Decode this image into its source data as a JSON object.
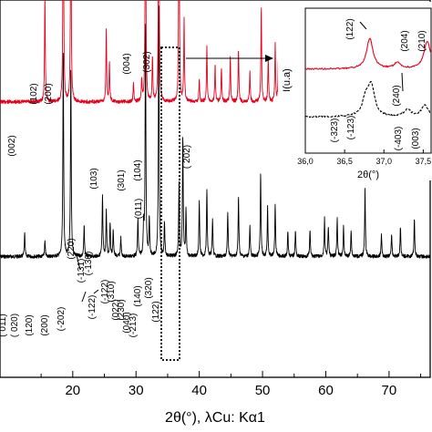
{
  "chart_data": [
    {
      "type": "line",
      "role": "main",
      "xlabel": "2θ(°), λCu: Kα1",
      "ylabel": "",
      "xlim": [
        8.5,
        76.5
      ],
      "x_ticks": [
        20,
        30,
        40,
        50,
        60,
        70
      ],
      "x_tick_labels": [
        "20",
        "30",
        "40",
        "50",
        "60",
        "70"
      ],
      "x_minor_ticks": [
        15,
        25,
        35,
        45,
        55,
        65,
        75
      ],
      "grid": false,
      "series": [
        {
          "color": "#e8001c",
          "baseline": 0.73,
          "peaks": [
            [
              15.6,
              28
            ],
            [
              18.5,
              66
            ],
            [
              19.7,
              58
            ],
            [
              25.3,
              19
            ],
            [
              25.8,
              10
            ],
            [
              29.6,
              5
            ],
            [
              30.9,
              6
            ],
            [
              31.5,
              66
            ],
            [
              32.6,
              12
            ],
            [
              33.6,
              72
            ],
            [
              36.8,
              58
            ],
            [
              37.6,
              22
            ],
            [
              40.0,
              6
            ],
            [
              41.2,
              15
            ],
            [
              42.5,
              10
            ],
            [
              43.5,
              9
            ],
            [
              44.9,
              12
            ],
            [
              46.2,
              14
            ],
            [
              48.0,
              8
            ],
            [
              49.8,
              25
            ],
            [
              50.9,
              12
            ],
            [
              52.0,
              15
            ],
            [
              52.5,
              11
            ],
            [
              55.2,
              6
            ],
            [
              58.3,
              6
            ],
            [
              60.2,
              8
            ],
            [
              61.6,
              6
            ],
            [
              62.4,
              17
            ],
            [
              62.9,
              14
            ],
            [
              64.0,
              10
            ],
            [
              66.2,
              12
            ],
            [
              69.0,
              6
            ],
            [
              70.5,
              6
            ],
            [
              71.6,
              5
            ],
            [
              72.4,
              5
            ],
            [
              74.1,
              6
            ]
          ]
        },
        {
          "color": "#000000",
          "baseline": 0.32,
          "peaks": [
            [
              12.4,
              6
            ],
            [
              15.6,
              4
            ],
            [
              18.5,
              55
            ],
            [
              19.7,
              50
            ],
            [
              21.8,
              8
            ],
            [
              24.7,
              16
            ],
            [
              25.3,
              12
            ],
            [
              25.9,
              9
            ],
            [
              26.4,
              7
            ],
            [
              27.6,
              5
            ],
            [
              30.3,
              10
            ],
            [
              31.2,
              8
            ],
            [
              31.5,
              62
            ],
            [
              32.1,
              10
            ],
            [
              33.6,
              68
            ],
            [
              34.5,
              9
            ],
            [
              36.8,
              20
            ],
            [
              37.4,
              32
            ],
            [
              37.9,
              12
            ],
            [
              40.0,
              15
            ],
            [
              41.2,
              18
            ],
            [
              42.1,
              10
            ],
            [
              44.5,
              12
            ],
            [
              46.2,
              16
            ],
            [
              48.0,
              8
            ],
            [
              49.7,
              22
            ],
            [
              50.8,
              13
            ],
            [
              52.0,
              14
            ],
            [
              54.0,
              7
            ],
            [
              55.2,
              7
            ],
            [
              57.5,
              7
            ],
            [
              59.8,
              10
            ],
            [
              60.4,
              8
            ],
            [
              61.8,
              10
            ],
            [
              62.8,
              8
            ],
            [
              64.0,
              7
            ],
            [
              66.2,
              18
            ],
            [
              68.8,
              6
            ],
            [
              70.4,
              6
            ],
            [
              71.8,
              8
            ],
            [
              74.0,
              10
            ]
          ]
        }
      ]
    },
    {
      "type": "line",
      "role": "inset",
      "xlabel": "2θ(°)",
      "ylabel": "I(u.a)",
      "xlim": [
        36.0,
        37.6
      ],
      "x_ticks": [
        36.0,
        36.5,
        37.0,
        37.5
      ],
      "x_tick_labels": [
        "36,0",
        "36,5",
        "37,0",
        "37,5"
      ],
      "grid": false,
      "series": [
        {
          "color": "#e8001c",
          "baseline": 0.58,
          "peaks": [
            [
              36.82,
              0.21
            ],
            [
              37.17,
              0.04
            ],
            [
              37.55,
              0.19
            ]
          ]
        },
        {
          "color": "#000000",
          "baseline": 0.25,
          "peaks": [
            [
              36.77,
              0.12
            ],
            [
              36.84,
              0.2
            ],
            [
              37.3,
              0.05
            ],
            [
              37.52,
              0.08
            ]
          ]
        }
      ]
    }
  ],
  "annotations": {
    "main_red": [
      "(002)",
      "(102)",
      "(200)",
      "(004)",
      "(302)",
      "( 202)",
      "(103)",
      "(301)",
      "(104)",
      "(011)"
    ],
    "main_black": [
      "( 011)",
      "( 020)",
      "(120)",
      "(200)",
      "(-202)",
      "(220)",
      "(-131)",
      "(-130)",
      "(-122)",
      "(-122)",
      "(310)",
      "(022)",
      "(230)",
      "(040)",
      "(-213)",
      "(140)",
      "(320)",
      "(122)"
    ],
    "inset": [
      "(122)",
      "(240)",
      "(204)",
      "(210)",
      "(-323)",
      "(-123)",
      "(-403)",
      "(003)"
    ]
  }
}
